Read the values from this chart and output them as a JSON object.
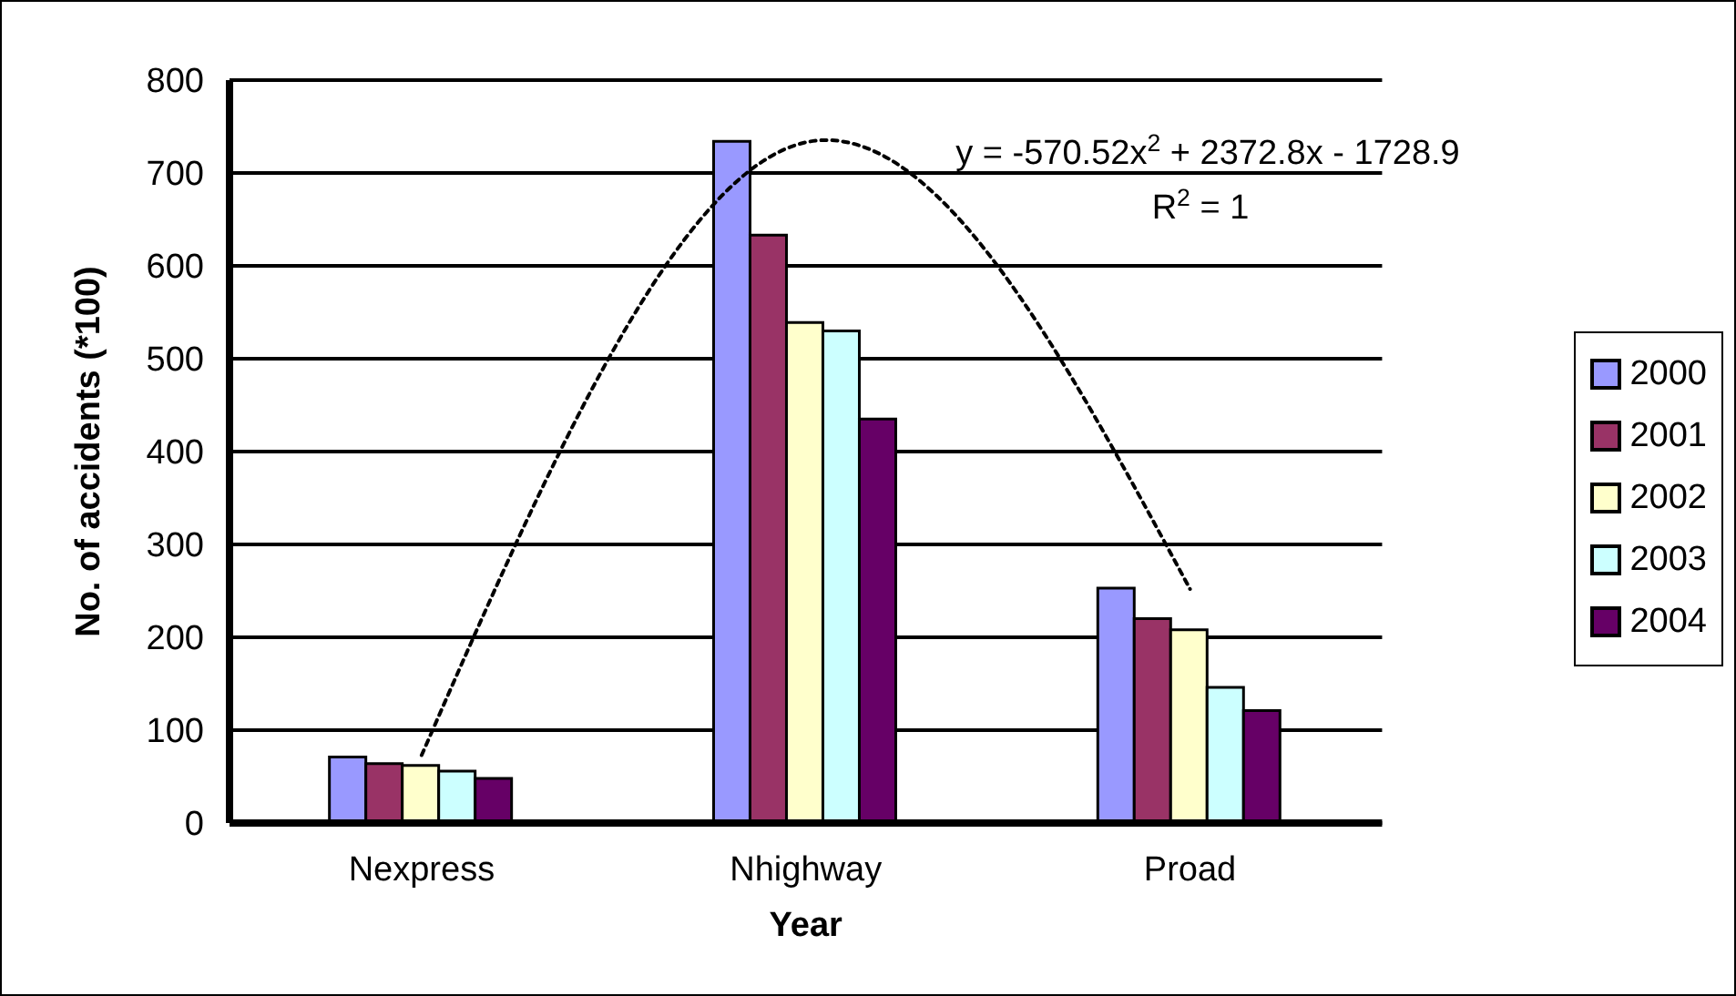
{
  "chart_data": {
    "type": "bar",
    "xlabel": "Year",
    "ylabel": "No. of accidents (*100)",
    "categories": [
      "Nexpress",
      "Nhighway",
      "Proad"
    ],
    "series": [
      {
        "name": "2000",
        "color": "#9999ff",
        "values": [
          71,
          734,
          253
        ]
      },
      {
        "name": "2001",
        "color": "#993366",
        "values": [
          64,
          633,
          220
        ]
      },
      {
        "name": "2002",
        "color": "#ffffcc",
        "values": [
          62,
          539,
          208
        ]
      },
      {
        "name": "2003",
        "color": "#ccffff",
        "values": [
          56,
          530,
          146
        ]
      },
      {
        "name": "2004",
        "color": "#660066",
        "values": [
          48,
          435,
          121
        ]
      },
      {
        "type": "line",
        "color": "#000000",
        "line_style": "dotted",
        "marker": "none",
        "values": [
          73,
          733,
          252
        ]
      }
    ],
    "annotations": [
      "y = -570.52x$^{2}$ + 2372.8x - 1728.9",
      "R$^{2}$ = 1"
    ],
    "ylim": [
      0,
      800
    ],
    "yticks": [
      0,
      100,
      200,
      300,
      400,
      500,
      600,
      700,
      800
    ],
    "grid": "y",
    "legend": "right"
  }
}
